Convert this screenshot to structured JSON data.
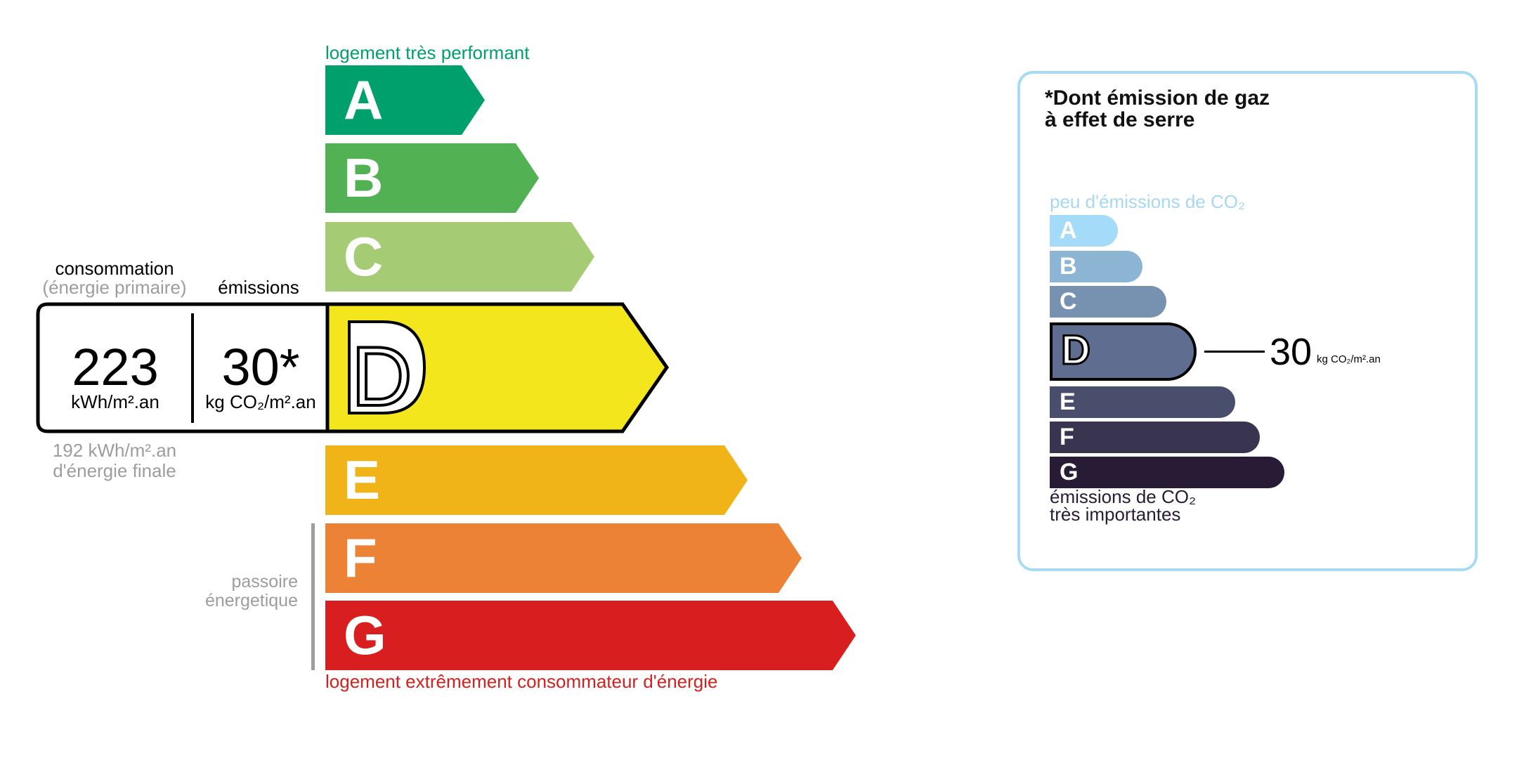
{
  "energy": {
    "top_label": "logement très performant",
    "bottom_label": "logement extrêmement consommateur d'énergie",
    "passoire_label": [
      "passoire",
      "énergetique"
    ],
    "classes": [
      {
        "letter": "A",
        "color": "#00a06d"
      },
      {
        "letter": "B",
        "color": "#52b153"
      },
      {
        "letter": "C",
        "color": "#a5cc74"
      },
      {
        "letter": "D",
        "color": "#f3e61c"
      },
      {
        "letter": "E",
        "color": "#f0b418"
      },
      {
        "letter": "F",
        "color": "#eb8235"
      },
      {
        "letter": "G",
        "color": "#d81e1e"
      }
    ],
    "current_class": "D",
    "consumption_label": "consommation",
    "consumption_sublabel": "(énergie primaire)",
    "emissions_label": "émissions",
    "consumption_value": "223",
    "consumption_unit": "kWh/m².an",
    "emissions_value": "30*",
    "emissions_unit": "kg CO₂/m².an",
    "final_energy_value": "192 kWh/m².an",
    "final_energy_label": "d'énergie finale"
  },
  "ges": {
    "title_line1": "*Dont émission de gaz",
    "title_line2": "à effet de serre",
    "top_label": "peu d'émissions de CO₂",
    "bottom_label_line1": "émissions de CO₂",
    "bottom_label_line2": "très importantes",
    "border_color": "#a6dbf7",
    "classes": [
      {
        "letter": "A",
        "color": "#a4dbf8"
      },
      {
        "letter": "B",
        "color": "#8cb4d3"
      },
      {
        "letter": "C",
        "color": "#7792b1"
      },
      {
        "letter": "D",
        "color": "#5f6d91"
      },
      {
        "letter": "E",
        "color": "#4a4e6d"
      },
      {
        "letter": "F",
        "color": "#393551"
      },
      {
        "letter": "G",
        "color": "#281b35"
      }
    ],
    "current_class": "D",
    "value": "30",
    "unit": "kg CO₂/m².an"
  }
}
